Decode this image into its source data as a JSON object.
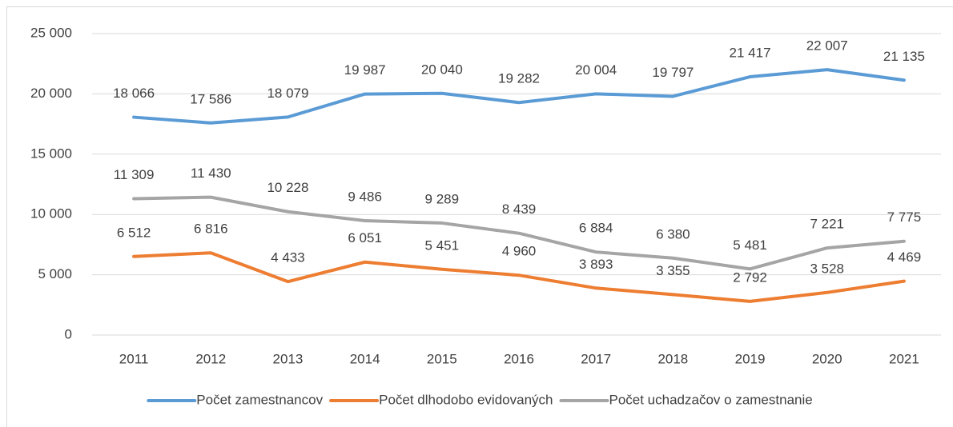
{
  "chart_data": {
    "type": "line",
    "categories": [
      "2011",
      "2012",
      "2013",
      "2014",
      "2015",
      "2016",
      "2017",
      "2018",
      "2019",
      "2020",
      "2021"
    ],
    "series": [
      {
        "name": "Počet zamestnancov",
        "color": "#5b9bd5",
        "values": [
          18066,
          17586,
          18079,
          19987,
          20040,
          19282,
          20004,
          19797,
          21417,
          22007,
          21135
        ],
        "value_labels": [
          "18 066",
          "17 586",
          "18 079",
          "19 987",
          "20 040",
          "19 282",
          "20 004",
          "19 797",
          "21 417",
          "22 007",
          "21 135"
        ]
      },
      {
        "name": "Počet dlhodobo evidovaných",
        "color": "#ed7d31",
        "values": [
          6512,
          6816,
          4433,
          6051,
          5451,
          4960,
          3893,
          3355,
          2792,
          3528,
          4469
        ],
        "value_labels": [
          "6 512",
          "6 816",
          "4 433",
          "6 051",
          "5 451",
          "4 960",
          "3 893",
          "3 355",
          "2 792",
          "3 528",
          "4 469"
        ]
      },
      {
        "name": "Počet uchadzačov o zamestnanie",
        "color": "#a5a5a5",
        "values": [
          11309,
          11430,
          10228,
          9486,
          9289,
          8439,
          6884,
          6380,
          5481,
          7221,
          7775
        ],
        "value_labels": [
          "11 309",
          "11 430",
          "10 228",
          "9 486",
          "9 289",
          "8 439",
          "6 884",
          "6 380",
          "5 481",
          "7 221",
          "7 775"
        ]
      }
    ],
    "ylim": [
      0,
      25000
    ],
    "yticks": [
      0,
      {
        "value": 5000,
        "label": "5 000"
      },
      {
        "value": 10000,
        "label": "10 000"
      },
      {
        "value": 15000,
        "label": "15 000"
      },
      {
        "value": 20000,
        "label": "20 000"
      },
      {
        "value": 25000,
        "label": "25 000"
      }
    ],
    "grid": true,
    "legend": "bottom"
  }
}
